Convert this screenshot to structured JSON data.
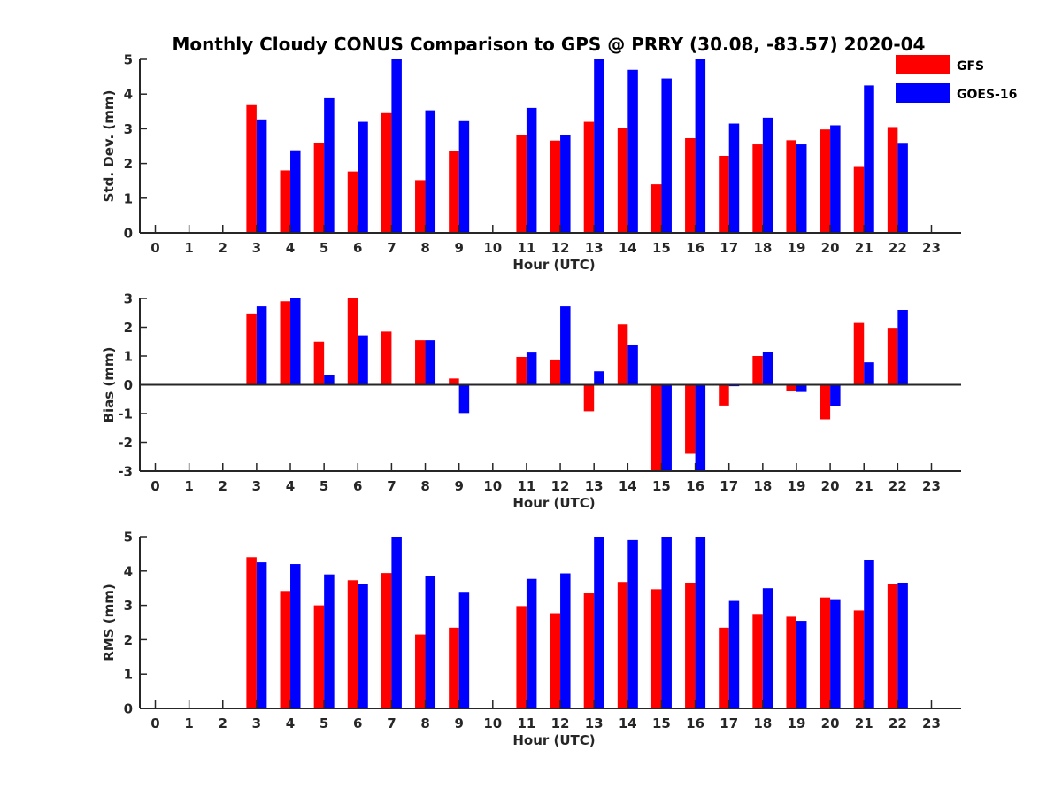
{
  "title": "Monthly Cloudy CONUS Comparison to GPS @ PRRY (30.08, -83.57) 2020-04",
  "legend": {
    "placement": "top-right",
    "entries": [
      {
        "name": "GFS",
        "color": "#ff0000"
      },
      {
        "name": "GOES-16",
        "color": "#0000ff"
      }
    ]
  },
  "chart_data": [
    {
      "type": "bar",
      "title": "Monthly Cloudy CONUS Comparison to GPS @ PRRY (30.08, -83.57) 2020-04",
      "xlabel": "Hour (UTC)",
      "ylabel": "Std. Dev. (mm)",
      "ylim": [
        0,
        5
      ],
      "yticks": [
        0,
        1,
        2,
        3,
        4,
        5
      ],
      "categories": [
        "0",
        "1",
        "2",
        "3",
        "4",
        "5",
        "6",
        "7",
        "8",
        "9",
        "10",
        "11",
        "12",
        "13",
        "14",
        "15",
        "16",
        "17",
        "18",
        "19",
        "20",
        "21",
        "22",
        "23"
      ],
      "series": [
        {
          "name": "GFS",
          "color": "#ff0000",
          "values": [
            null,
            null,
            null,
            3.68,
            1.8,
            2.6,
            1.77,
            3.45,
            1.52,
            2.35,
            null,
            2.82,
            2.66,
            3.2,
            3.02,
            1.4,
            2.73,
            2.22,
            2.55,
            2.67,
            2.98,
            1.9,
            3.05,
            null
          ]
        },
        {
          "name": "GOES-16",
          "color": "#0000ff",
          "values": [
            null,
            null,
            null,
            3.27,
            2.38,
            3.88,
            3.2,
            5.0,
            3.53,
            3.22,
            null,
            3.6,
            2.82,
            5.0,
            4.7,
            4.45,
            5.0,
            3.15,
            3.32,
            2.55,
            3.1,
            4.25,
            2.57,
            null
          ]
        }
      ],
      "grid": false,
      "legend": "top-right"
    },
    {
      "type": "bar",
      "xlabel": "Hour (UTC)",
      "ylabel": "Bias (mm)",
      "ylim": [
        -3,
        3
      ],
      "yticks": [
        -3,
        -2,
        -1,
        0,
        1,
        2,
        3
      ],
      "categories": [
        "0",
        "1",
        "2",
        "3",
        "4",
        "5",
        "6",
        "7",
        "8",
        "9",
        "10",
        "11",
        "12",
        "13",
        "14",
        "15",
        "16",
        "17",
        "18",
        "19",
        "20",
        "21",
        "22",
        "23"
      ],
      "series": [
        {
          "name": "GFS",
          "color": "#ff0000",
          "values": [
            null,
            null,
            null,
            2.45,
            2.9,
            1.5,
            3.0,
            1.85,
            1.55,
            0.22,
            null,
            0.97,
            0.88,
            -0.92,
            2.1,
            -3.0,
            -2.4,
            -0.72,
            1.0,
            -0.22,
            -1.2,
            2.15,
            1.98,
            null
          ]
        },
        {
          "name": "GOES-16",
          "color": "#0000ff",
          "values": [
            null,
            null,
            null,
            2.72,
            3.0,
            0.35,
            1.72,
            null,
            1.55,
            -0.98,
            null,
            1.12,
            2.72,
            0.47,
            1.37,
            -3.0,
            -3.0,
            -0.05,
            1.15,
            -0.25,
            -0.75,
            0.78,
            2.6,
            null
          ]
        }
      ],
      "grid": false
    },
    {
      "type": "bar",
      "xlabel": "Hour (UTC)",
      "ylabel": "RMS (mm)",
      "ylim": [
        0,
        5
      ],
      "yticks": [
        0,
        1,
        2,
        3,
        4,
        5
      ],
      "categories": [
        "0",
        "1",
        "2",
        "3",
        "4",
        "5",
        "6",
        "7",
        "8",
        "9",
        "10",
        "11",
        "12",
        "13",
        "14",
        "15",
        "16",
        "17",
        "18",
        "19",
        "20",
        "21",
        "22",
        "23"
      ],
      "series": [
        {
          "name": "GFS",
          "color": "#ff0000",
          "values": [
            null,
            null,
            null,
            4.4,
            3.42,
            3.0,
            3.73,
            3.94,
            2.15,
            2.35,
            null,
            2.98,
            2.77,
            3.35,
            3.68,
            3.47,
            3.66,
            2.35,
            2.75,
            2.67,
            3.23,
            2.85,
            3.63,
            null
          ]
        },
        {
          "name": "GOES-16",
          "color": "#0000ff",
          "values": [
            null,
            null,
            null,
            4.25,
            4.2,
            3.9,
            3.63,
            5.0,
            3.85,
            3.37,
            null,
            3.77,
            3.93,
            5.0,
            4.9,
            5.0,
            5.0,
            3.13,
            3.5,
            2.55,
            3.18,
            4.33,
            3.66,
            null
          ]
        }
      ],
      "grid": false
    }
  ]
}
